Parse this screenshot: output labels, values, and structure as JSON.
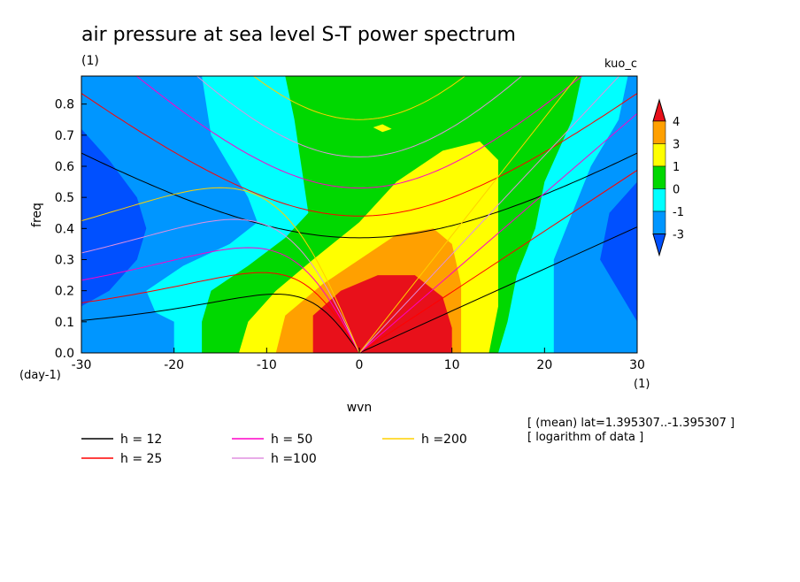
{
  "chart_data": {
    "type": "heatmap",
    "title": "air pressure at sea level S-T power spectrum",
    "units_label": "(1)",
    "model_label": "kuo_c",
    "xlabel": "wvn",
    "ylabel": "freq",
    "x_unit_label": "(1)",
    "y_unit_label": "(day-1)",
    "xlim": [
      -30,
      30
    ],
    "ylim": [
      0,
      0.89
    ],
    "x_ticks": [
      -30,
      -20,
      -10,
      0,
      10,
      20,
      30
    ],
    "x_tick_labels": [
      "-30",
      "-20",
      "-10",
      "0",
      "10",
      "20",
      "30"
    ],
    "y_ticks": [
      0,
      0.1,
      0.2,
      0.3,
      0.4,
      0.5,
      0.6,
      0.7,
      0.8
    ],
    "y_tick_labels": [
      "0.0",
      "0.1",
      "0.2",
      "0.3",
      "0.4",
      "0.5",
      "0.6",
      "0.7",
      "0.8"
    ],
    "colorbar": {
      "levels": [
        "4",
        "3",
        "1",
        "0",
        "-1",
        "-3"
      ],
      "colors": [
        "#ff0000",
        "#ffa500",
        "#ffff00",
        "#00dd00",
        "#00ffff",
        "#0096ff",
        "#0050ff",
        "#e01010"
      ],
      "bands": [
        {
          "range": "> 4",
          "color": "#e8101a"
        },
        {
          "range": "3 - 4",
          "color": "#ffa000"
        },
        {
          "range": "1 - 3",
          "color": "#ffff00"
        },
        {
          "range": "0 - 1",
          "color": "#00d800"
        },
        {
          "range": "-1 - 0",
          "color": "#00ffff"
        },
        {
          "range": "-3 - -1",
          "color": "#0096ff"
        },
        {
          "range": "< -3",
          "color": "#0050ff"
        }
      ]
    },
    "legend": [
      {
        "label": "h = 12",
        "color": "#000000"
      },
      {
        "label": "h = 25",
        "color": "#ff0000"
      },
      {
        "label": "h = 50",
        "color": "#ff00c8"
      },
      {
        "label": "h =100",
        "color": "#e090e0"
      },
      {
        "label": "h =200",
        "color": "#ffd000"
      }
    ],
    "dispersion_curves": {
      "equivalent_depths_m": [
        12,
        25,
        50,
        100,
        200
      ],
      "kelvin_min_freq": [
        0.37,
        0.44,
        0.53,
        0.63,
        0.75
      ]
    },
    "annotations": [
      "[ (mean) lat=1.395307..-1.395307 ]",
      "[ logarithm of data ]"
    ]
  }
}
